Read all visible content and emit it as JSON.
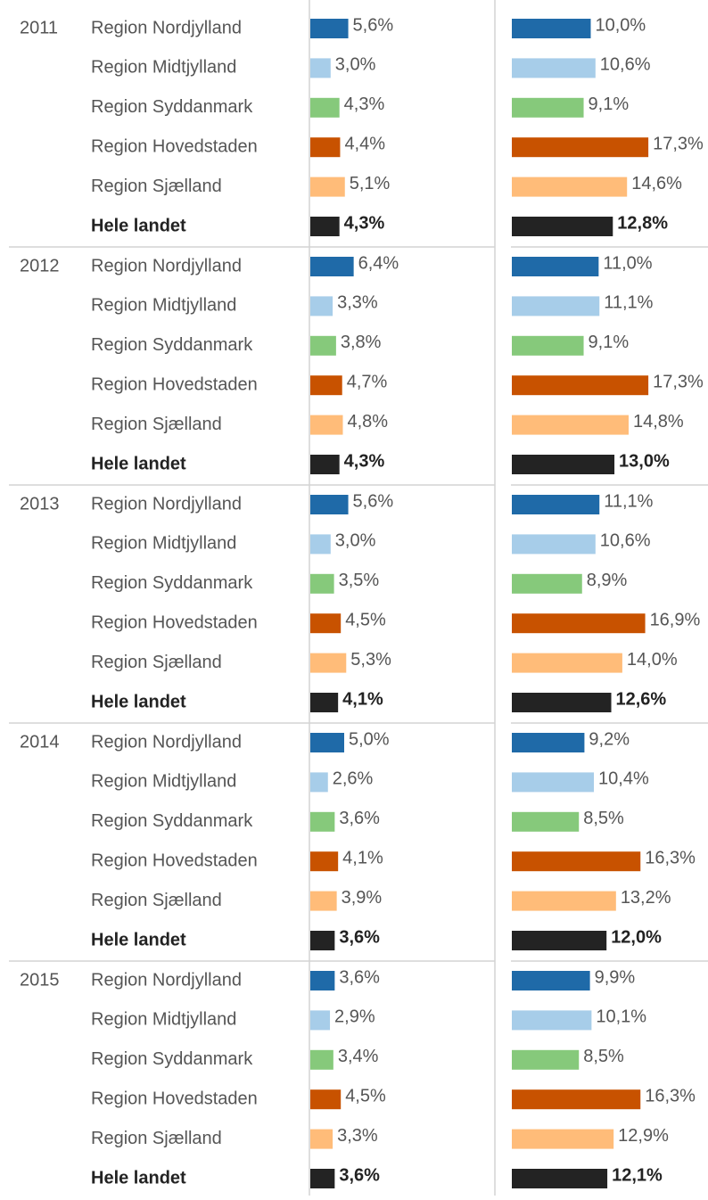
{
  "chart_data": {
    "type": "bar-table",
    "years": [
      "2011",
      "2012",
      "2013",
      "2014",
      "2015"
    ],
    "categories": [
      "Region Nordjylland",
      "Region Midtjylland",
      "Region Syddanmark",
      "Region Hovedstaden",
      "Region Sjælland",
      "Hele landet"
    ],
    "colors": [
      "#1f6aa8",
      "#a7cde9",
      "#86c97b",
      "#c85200",
      "#ffbc79",
      "#232323"
    ],
    "panels": [
      {
        "values": [
          [
            5.6,
            3.0,
            4.3,
            4.4,
            5.1,
            4.3
          ],
          [
            6.4,
            3.3,
            3.8,
            4.7,
            4.8,
            4.3
          ],
          [
            5.6,
            3.0,
            3.5,
            4.5,
            5.3,
            4.1
          ],
          [
            5.0,
            2.6,
            3.6,
            4.1,
            3.9,
            3.6
          ],
          [
            3.6,
            2.9,
            3.4,
            4.5,
            3.3,
            3.6
          ]
        ],
        "value_labels": [
          [
            "5,6%",
            "3,0%",
            "4,3%",
            "4,4%",
            "5,1%",
            "4,3%"
          ],
          [
            "6,4%",
            "3,3%",
            "3,8%",
            "4,7%",
            "4,8%",
            "4,3%"
          ],
          [
            "5,6%",
            "3,0%",
            "3,5%",
            "4,5%",
            "5,3%",
            "4,1%"
          ],
          [
            "5,0%",
            "2,6%",
            "3,6%",
            "4,1%",
            "3,9%",
            "3,6%"
          ],
          [
            "3,6%",
            "2,9%",
            "3,4%",
            "4,5%",
            "3,3%",
            "3,6%"
          ]
        ]
      },
      {
        "values": [
          [
            10.0,
            10.6,
            9.1,
            17.3,
            14.6,
            12.8
          ],
          [
            11.0,
            11.1,
            9.1,
            17.3,
            14.8,
            13.0
          ],
          [
            11.1,
            10.6,
            8.9,
            16.9,
            14.0,
            12.6
          ],
          [
            9.2,
            10.4,
            8.5,
            16.3,
            13.2,
            12.0
          ],
          [
            9.9,
            10.1,
            8.5,
            16.3,
            12.9,
            12.1
          ]
        ],
        "value_labels": [
          [
            "10,0%",
            "10,6%",
            "9,1%",
            "17,3%",
            "14,6%",
            "12,8%"
          ],
          [
            "11,0%",
            "11,1%",
            "9,1%",
            "17,3%",
            "14,8%",
            "13,0%"
          ],
          [
            "11,1%",
            "10,6%",
            "8,9%",
            "16,9%",
            "14,0%",
            "12,6%"
          ],
          [
            "9,2%",
            "10,4%",
            "8,5%",
            "16,3%",
            "13,2%",
            "12,0%"
          ],
          [
            "9,9%",
            "10,1%",
            "8,5%",
            "16,3%",
            "12,9%",
            "12,1%"
          ]
        ]
      }
    ]
  }
}
